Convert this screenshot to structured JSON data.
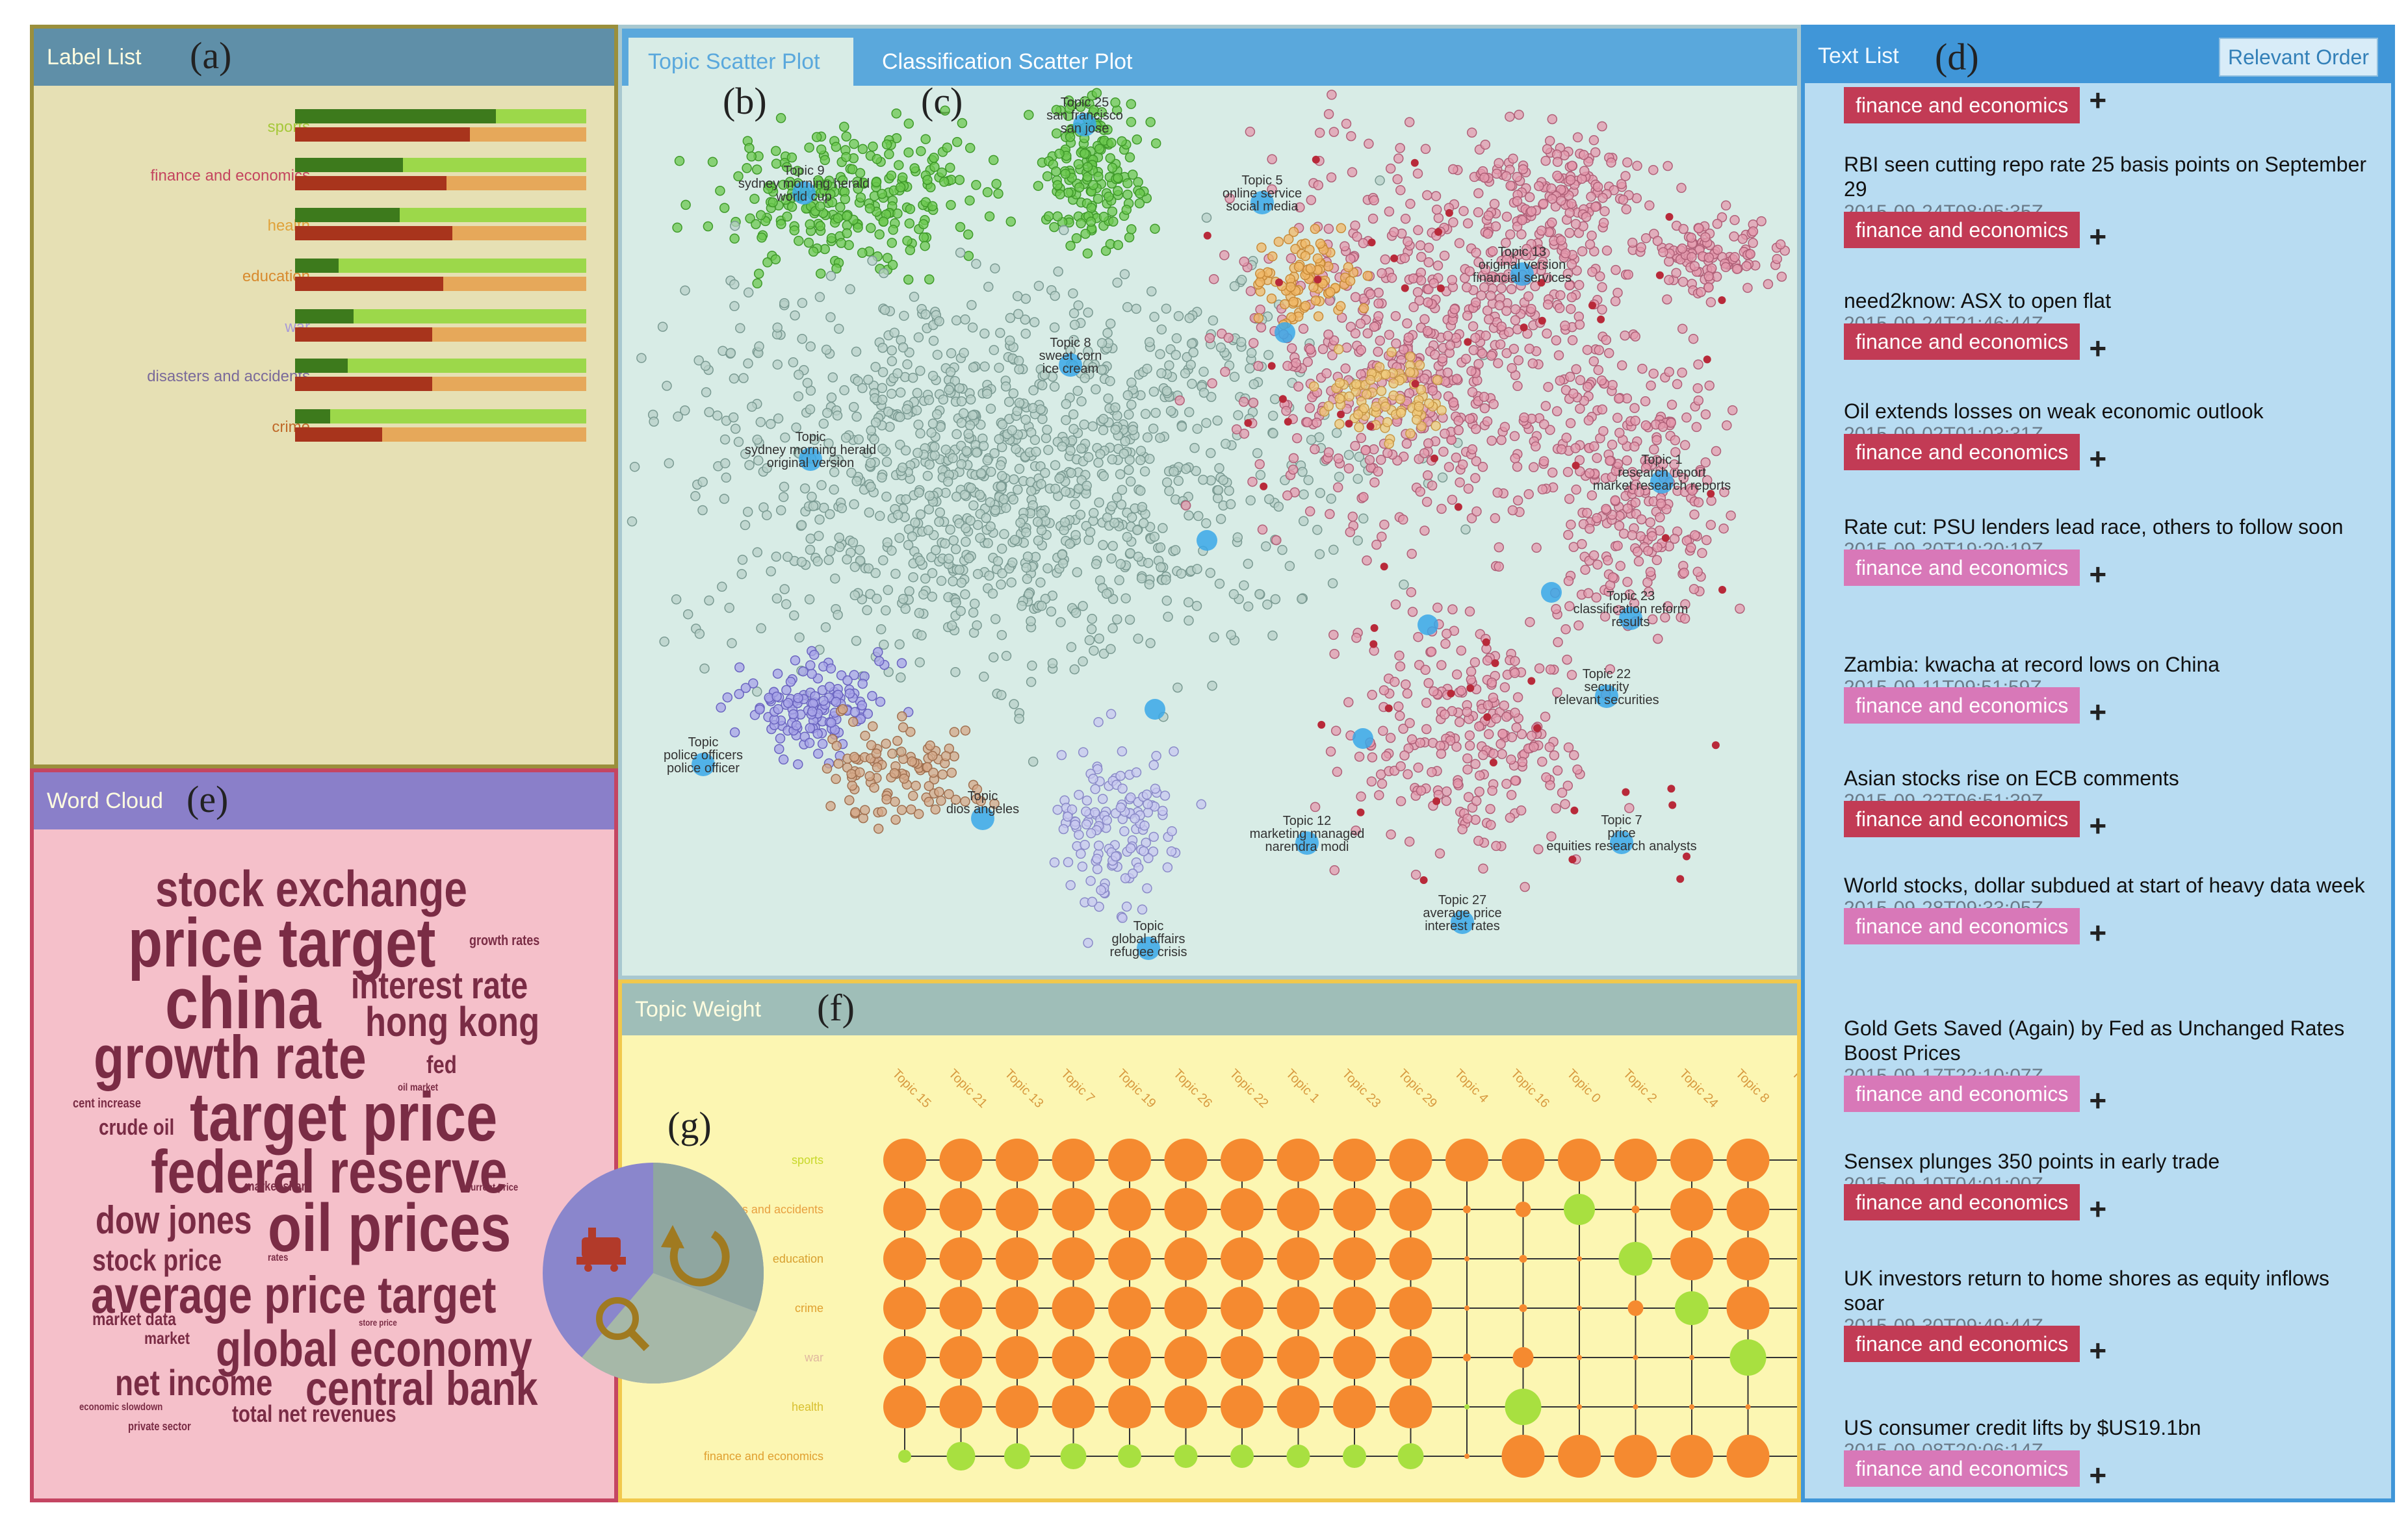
{
  "label_list": {
    "title": "Label List",
    "letter": "(a)",
    "items": [
      {
        "label": "sports",
        "color": "#a6c83a",
        "top": 0.69,
        "bottom": 0.6
      },
      {
        "label": "finance and economics",
        "color": "#c4455f",
        "top": 0.37,
        "bottom": 0.52
      },
      {
        "label": "health",
        "color": "#e0a23a",
        "top": 0.36,
        "bottom": 0.54
      },
      {
        "label": "education",
        "color": "#d88a2e",
        "top": 0.15,
        "bottom": 0.51
      },
      {
        "label": "war",
        "color": "#a89ad8",
        "top": 0.2,
        "bottom": 0.47
      },
      {
        "label": "disasters and accidents",
        "color": "#7a6a9a",
        "top": 0.18,
        "bottom": 0.47
      },
      {
        "label": "crime",
        "color": "#c06a2a",
        "top": 0.12,
        "bottom": 0.3
      }
    ]
  },
  "word_cloud": {
    "title": "Word Cloud",
    "letter": "(e)",
    "words": [
      {
        "text": "stock exchange",
        "size": 78
      },
      {
        "text": "price target",
        "size": 106
      },
      {
        "text": "growth rates",
        "size": 22
      },
      {
        "text": "china",
        "size": 112
      },
      {
        "text": "interest rate",
        "size": 58
      },
      {
        "text": "hong kong",
        "size": 64
      },
      {
        "text": "growth rate",
        "size": 94
      },
      {
        "text": "fed",
        "size": 38
      },
      {
        "text": "oil market",
        "size": 16
      },
      {
        "text": "cent increase",
        "size": 20
      },
      {
        "text": "target price",
        "size": 106
      },
      {
        "text": "crude oil",
        "size": 34
      },
      {
        "text": "federal reserve",
        "size": 94
      },
      {
        "text": "market share",
        "size": 20
      },
      {
        "text": "current price",
        "size": 16
      },
      {
        "text": "dow jones",
        "size": 60
      },
      {
        "text": "oil prices",
        "size": 104
      },
      {
        "text": "stock price",
        "size": 46
      },
      {
        "text": "rates",
        "size": 16
      },
      {
        "text": "average price target",
        "size": 80
      },
      {
        "text": "market data",
        "size": 28
      },
      {
        "text": "store price",
        "size": 14
      },
      {
        "text": "market",
        "size": 26
      },
      {
        "text": "global economy",
        "size": 78
      },
      {
        "text": "net income",
        "size": 56
      },
      {
        "text": "central bank",
        "size": 74
      },
      {
        "text": "economic slowdown",
        "size": 16
      },
      {
        "text": "total net revenues",
        "size": 36
      },
      {
        "text": "private sector",
        "size": 18
      }
    ]
  },
  "scatter": {
    "tabs": [
      "Topic Scatter Plot",
      "Classification Scatter Plot"
    ],
    "letters": [
      "(b)",
      "(c)"
    ],
    "topic_labels": [
      {
        "lines": [
          "Topic 25",
          "san francisco",
          "san jose"
        ]
      },
      {
        "lines": [
          "Topic 9",
          "sydney morning herald",
          "world cup"
        ]
      },
      {
        "lines": [
          "Topic 5",
          "online service",
          "social media"
        ]
      },
      {
        "lines": [
          "Topic 13",
          "original version",
          "financial services"
        ]
      },
      {
        "lines": [
          "Topic 8",
          "sweet corn",
          "ice cream"
        ]
      },
      {
        "lines": [
          "Topic 1",
          "research report",
          "market research reports"
        ]
      },
      {
        "lines": [
          "Topic",
          "sydney morning herald",
          "original version"
        ]
      },
      {
        "lines": [
          "Topic 23",
          "classification reform",
          "results"
        ]
      },
      {
        "lines": [
          "Topic 22",
          "security",
          "relevant securities"
        ]
      },
      {
        "lines": [
          "Topic",
          "police officers",
          "police officer"
        ]
      },
      {
        "lines": [
          "Topic 7",
          "price",
          "equities research analysts"
        ]
      },
      {
        "lines": [
          "Topic 12",
          "marketing managed",
          "narendra modi"
        ]
      },
      {
        "lines": [
          "Topic 27",
          "average price",
          "interest rates"
        ]
      },
      {
        "lines": [
          "Topic",
          "global affairs",
          "refugee crisis"
        ]
      },
      {
        "lines": [
          "Topic",
          "dios angeles"
        ]
      }
    ]
  },
  "topic_weight": {
    "title": "Topic Weight",
    "letter": "(f)",
    "menu_letter": "(g)",
    "topics": [
      "Topic 15",
      "Topic 21",
      "Topic 13",
      "Topic 7",
      "Topic 19",
      "Topic 26",
      "Topic 22",
      "Topic 1",
      "Topic 23",
      "Topic 29",
      "Topic 4",
      "Topic 16",
      "Topic 0",
      "Topic 2",
      "Topic 24",
      "Topic 8",
      "To"
    ],
    "rows": [
      "sports",
      "disasters and accidents",
      "education",
      "crime",
      "war",
      "health",
      "finance and economics"
    ]
  },
  "text_list": {
    "title": "Text List",
    "letter": "(d)",
    "order_button": "Relevant Order",
    "items": [
      {
        "title": "",
        "date": "",
        "label": "finance and economics",
        "dark": true
      },
      {
        "title": "RBI seen cutting repo rate 25 basis points on September 29",
        "date": "2015-09-24T08:05:35Z",
        "label": "finance and economics",
        "dark": true
      },
      {
        "title": "need2know: ASX to open flat",
        "date": "2015-09-24T21:46:44Z",
        "label": "finance and economics",
        "dark": true
      },
      {
        "title": "Oil extends losses on weak economic outlook",
        "date": "2015-09-02T01:03:31Z",
        "label": "finance and economics",
        "dark": true
      },
      {
        "title": "Rate cut: PSU lenders lead race, others to follow soon",
        "date": "2015-09-30T19:20:19Z",
        "label": "finance and economics",
        "dark": false
      },
      {
        "title": "Zambia: kwacha at record lows on China",
        "date": "2015-09-11T09:51:59Z",
        "label": "finance and economics",
        "dark": false
      },
      {
        "title": "Asian stocks rise on ECB comments",
        "date": "2015-09-22T06:51:39Z",
        "label": "finance and economics",
        "dark": true
      },
      {
        "title": "World stocks, dollar subdued at start of heavy data week",
        "date": "2015-09-28T09:33:05Z",
        "label": "finance and economics",
        "dark": false
      },
      {
        "title": "Gold Gets Saved (Again) by Fed as Unchanged Rates Boost Prices",
        "date": "2015-09-17T22:10:07Z",
        "label": "finance and economics",
        "dark": false
      },
      {
        "title": "Sensex plunges 350 points in early trade",
        "date": "2015-09-10T04:01:00Z",
        "label": "finance and economics",
        "dark": true
      },
      {
        "title": "UK investors return to home shores as equity inflows soar",
        "date": "2015-09-30T09:49:44Z",
        "label": "finance and economics",
        "dark": true
      },
      {
        "title": "US consumer credit lifts by $US19.1bn",
        "date": "2015-09-08T20:06:14Z",
        "label": "finance and economics",
        "dark": false
      }
    ]
  },
  "colors": {
    "badge_dark": "#c23b55",
    "badge_light": "#d878b8",
    "bubble": "#f58a30",
    "bubble_small": "#a8e040"
  }
}
